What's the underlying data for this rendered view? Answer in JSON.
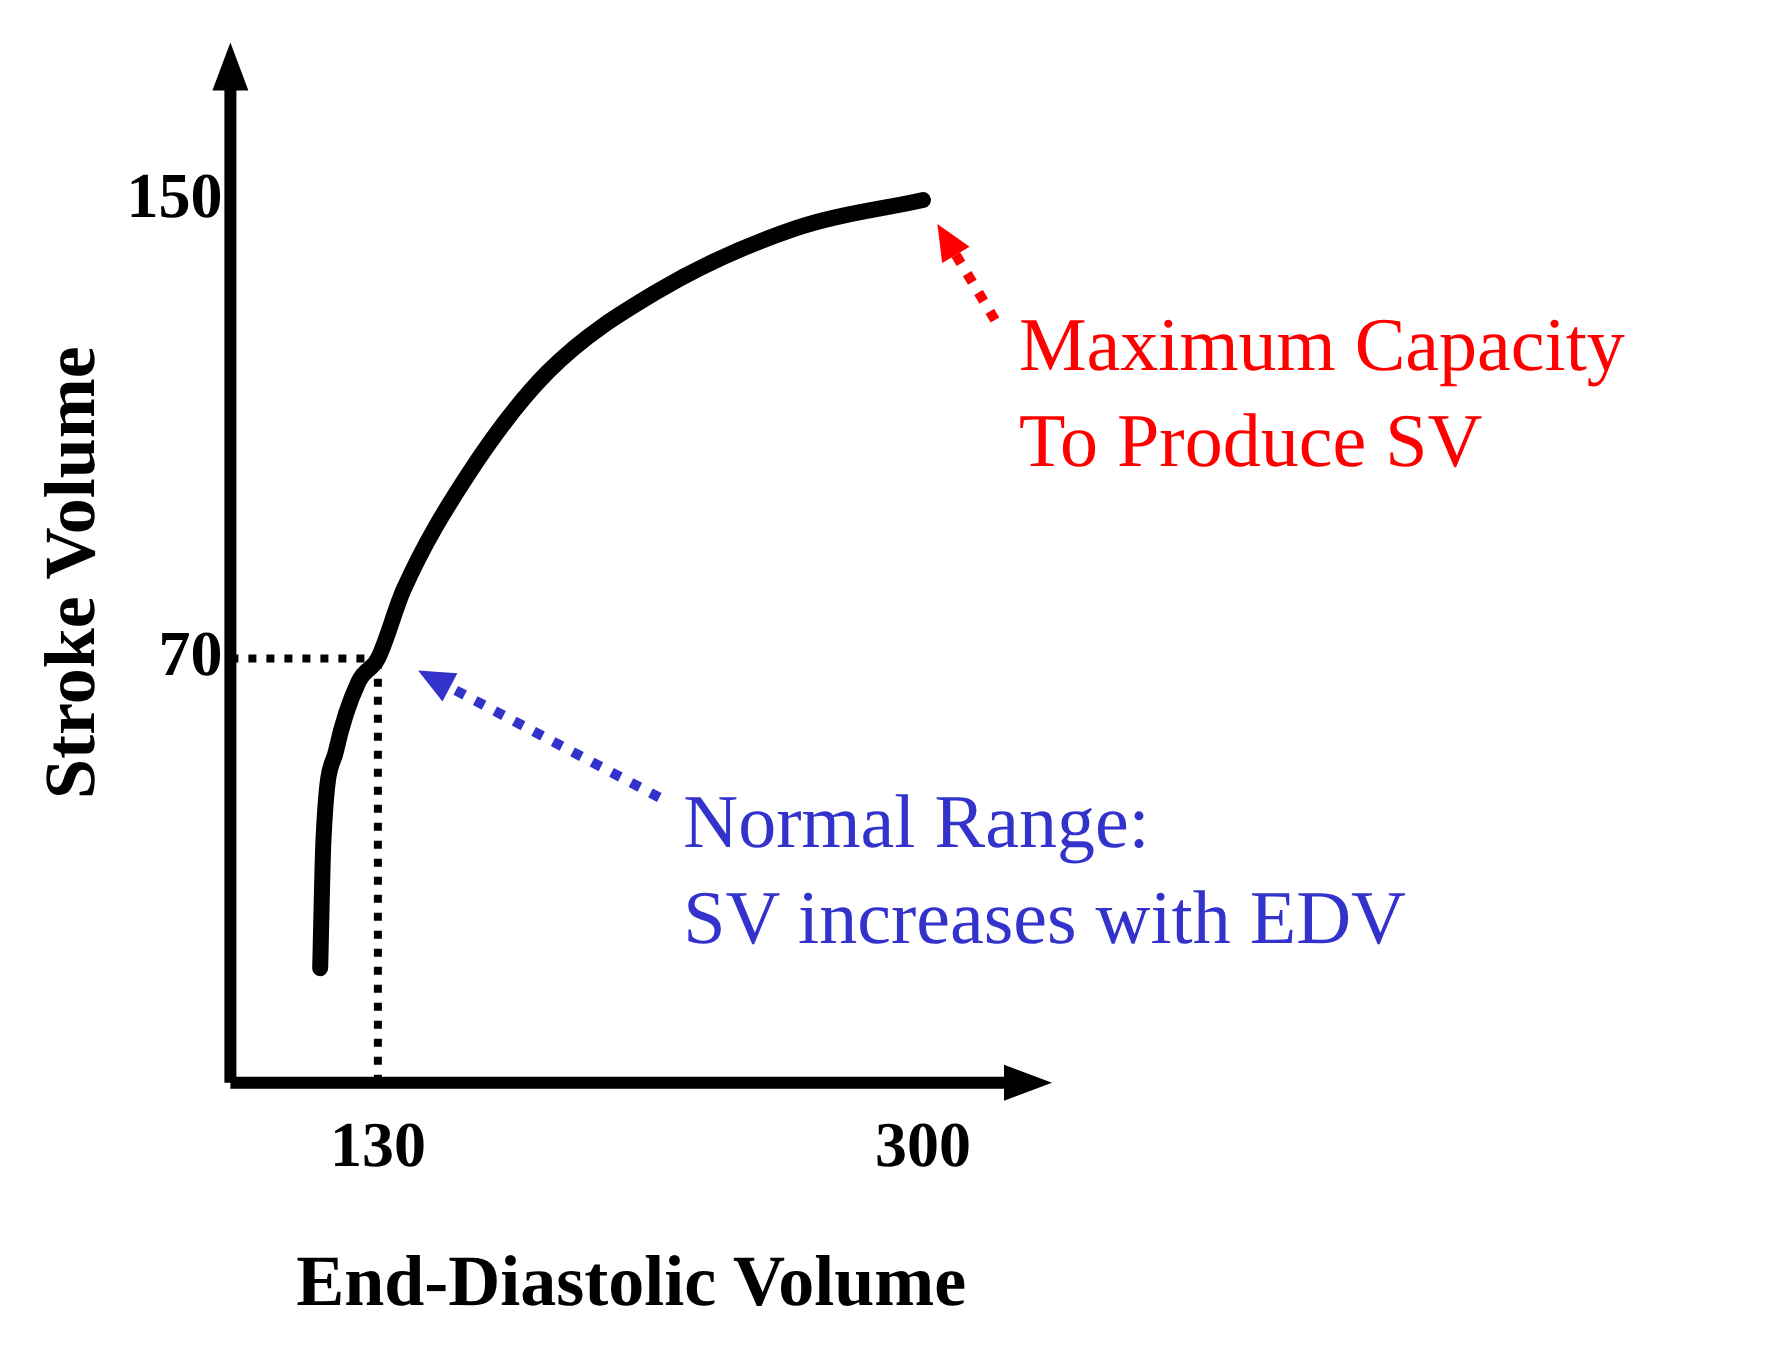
{
  "chart_data": {
    "type": "line",
    "xlabel": "End-Diastolic Volume",
    "ylabel": "Stroke Volume",
    "x": [
      112,
      113,
      117,
      124,
      130,
      138,
      158,
      183,
      217,
      260,
      300
    ],
    "series": [
      {
        "color": "#000000",
        "values": [
          16,
          38,
          54,
          66,
          70,
          82,
          102,
          120,
          134,
          145,
          150
        ]
      }
    ],
    "xlim": [
      84,
      334
    ],
    "ylim": [
      -4,
      174
    ],
    "xticks": [
      130,
      300
    ],
    "yticks": [
      70,
      150
    ],
    "grid": false,
    "legend": false,
    "marker": "none",
    "line_style": "solid",
    "ref_lines": [
      {
        "axis": "y",
        "value": 70,
        "color": "#000000",
        "line_style": "dotted"
      },
      {
        "axis": "x",
        "value": 130,
        "color": "#000000",
        "line_style": "dotted"
      }
    ],
    "annotations": [
      {
        "text": "Maximum Capacity\nTo Produce SV",
        "x": 300,
        "y": 150
      },
      "Normal Range:\nSV increases with EDV"
    ]
  }
}
